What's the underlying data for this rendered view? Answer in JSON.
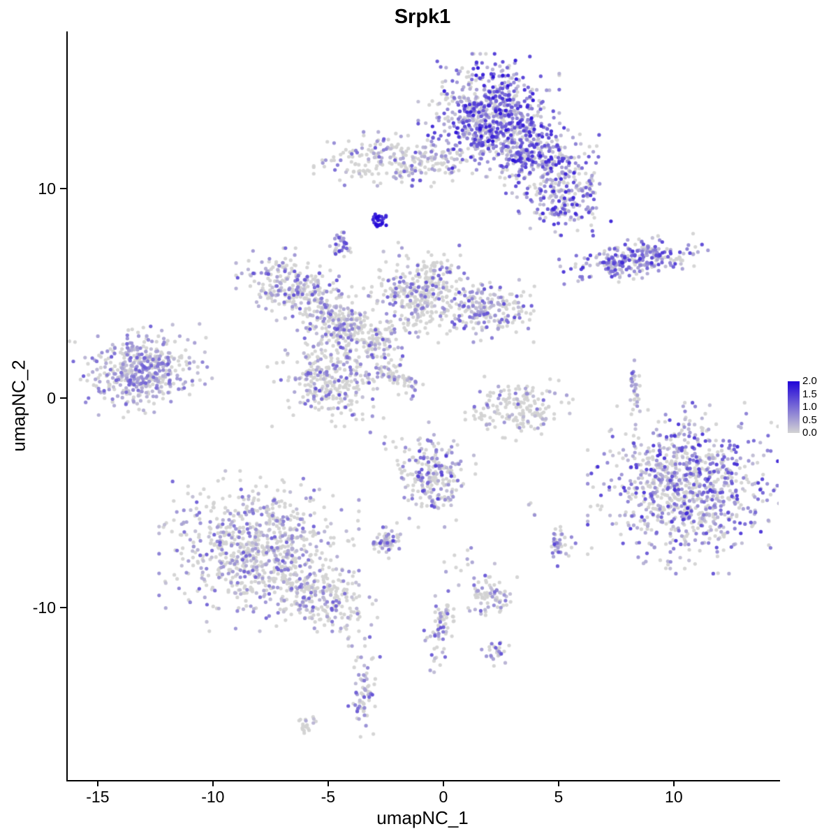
{
  "figure": {
    "background": "#FFFFFF"
  },
  "chart_data": {
    "type": "scatter",
    "title": "Srpk1",
    "subtitle": "",
    "xlabel": "umapNC_1",
    "ylabel": "umapNC_2",
    "grid": false,
    "legend_position": "right",
    "xlim": [
      -16.36,
      14.55
    ],
    "ylim": [
      -18.23,
      17.5
    ],
    "x_tick_values": [
      -15,
      -10,
      -5,
      0,
      5,
      10
    ],
    "x_tick_labels": [
      "-15",
      "-10",
      "-5",
      "0",
      "5",
      "10"
    ],
    "y_tick_values": [
      10,
      0,
      -10
    ],
    "y_tick_labels": [
      "10",
      "0",
      "-10"
    ],
    "legend": {
      "labels": [
        "2.0",
        "1.5",
        "1.0",
        "0.5",
        "0.0"
      ],
      "values": [
        2.0,
        1.5,
        1.0,
        0.5,
        0.0
      ],
      "color_high": "#2004D8",
      "color_low": "#D3D3D3"
    },
    "expression_range": [
      0,
      2
    ],
    "point_radius_px": 2.6,
    "point_alpha": 0.95,
    "colors": {
      "zero_expression": "#D3D3D3",
      "max_expression": "#2004D8"
    },
    "clusters": [
      {
        "name": "top-main-core",
        "x": 1.97,
        "y": 13.5,
        "sx": 1.2,
        "sy": 1.15,
        "n": 700,
        "pos": 0.78,
        "inten": 0.95
      },
      {
        "name": "top-main-ext",
        "x": 4.0,
        "y": 11.5,
        "sx": 1.2,
        "sy": 0.85,
        "n": 320,
        "pos": 0.7,
        "inten": 0.85,
        "rot": -25
      },
      {
        "name": "top-main-arm",
        "x": 5.3,
        "y": 9.6,
        "sx": 0.8,
        "sy": 0.75,
        "n": 180,
        "pos": 0.68,
        "inten": 0.85
      },
      {
        "name": "top-left-band",
        "x": -1.8,
        "y": 11.3,
        "sx": 1.5,
        "sy": 0.55,
        "n": 230,
        "pos": 0.35,
        "inten": 0.6
      },
      {
        "name": "left-of-band-sparse",
        "x": -3.9,
        "y": 11.5,
        "sx": 0.4,
        "sy": 0.4,
        "n": 12,
        "pos": 0.3,
        "inten": 0.5
      },
      {
        "name": "dark-dot-blob",
        "x": -2.8,
        "y": 8.5,
        "sx": 0.17,
        "sy": 0.22,
        "n": 26,
        "pos": 1.0,
        "inten": 1.0,
        "dark": true
      },
      {
        "name": "small-purple-blob",
        "x": -4.5,
        "y": 7.3,
        "sx": 0.2,
        "sy": 0.32,
        "n": 34,
        "pos": 0.8,
        "inten": 0.7
      },
      {
        "name": "right-elongated",
        "x": 8.2,
        "y": 6.6,
        "sx": 1.3,
        "sy": 0.38,
        "n": 260,
        "pos": 0.75,
        "inten": 0.8,
        "rot": 8
      },
      {
        "name": "left-net-a",
        "x": -6.7,
        "y": 5.5,
        "sx": 0.9,
        "sy": 0.65,
        "n": 200,
        "pos": 0.45,
        "inten": 0.6
      },
      {
        "name": "left-net-b",
        "x": -5.2,
        "y": 4.2,
        "sx": 0.7,
        "sy": 0.6,
        "n": 150,
        "pos": 0.45,
        "inten": 0.6,
        "rot": -20
      },
      {
        "name": "left-net-c",
        "x": -4.2,
        "y": 3.3,
        "sx": 0.5,
        "sy": 0.4,
        "n": 90,
        "pos": 0.4,
        "inten": 0.6
      },
      {
        "name": "center-top-blob",
        "x": -0.9,
        "y": 5.0,
        "sx": 1.05,
        "sy": 0.95,
        "n": 360,
        "pos": 0.32,
        "inten": 0.6
      },
      {
        "name": "center-top-stem",
        "x": -2.7,
        "y": 2.7,
        "sx": 0.55,
        "sy": 0.5,
        "n": 90,
        "pos": 0.35,
        "inten": 0.6,
        "rot": 30
      },
      {
        "name": "right-of-center-blob",
        "x": 2.0,
        "y": 4.2,
        "sx": 0.8,
        "sy": 0.6,
        "n": 180,
        "pos": 0.55,
        "inten": 0.7
      },
      {
        "name": "far-left",
        "x": -13.0,
        "y": 1.3,
        "sx": 1.15,
        "sy": 0.8,
        "n": 460,
        "pos": 0.6,
        "inten": 0.55,
        "rot": 10
      },
      {
        "name": "center-left-blob",
        "x": -4.7,
        "y": 1.2,
        "sx": 1.15,
        "sy": 1.0,
        "n": 330,
        "pos": 0.35,
        "inten": 0.6
      },
      {
        "name": "center-streak",
        "x": -2.0,
        "y": 1.0,
        "sx": 0.65,
        "sy": 0.25,
        "n": 60,
        "pos": 0.3,
        "inten": 0.5,
        "rot": -28
      },
      {
        "name": "right-center-grey",
        "x": 3.2,
        "y": -0.5,
        "sx": 0.95,
        "sy": 0.6,
        "n": 170,
        "pos": 0.25,
        "inten": 0.5
      },
      {
        "name": "tiny-vertical-strip",
        "x": 8.3,
        "y": 0.2,
        "sx": 0.12,
        "sy": 0.7,
        "n": 30,
        "pos": 0.5,
        "inten": 0.6
      },
      {
        "name": "big-right",
        "x": 10.6,
        "y": -4.3,
        "sx": 1.7,
        "sy": 1.6,
        "n": 900,
        "pos": 0.62,
        "inten": 0.8
      },
      {
        "name": "center-bottom",
        "x": -0.5,
        "y": -3.7,
        "sx": 0.75,
        "sy": 1.0,
        "n": 230,
        "pos": 0.5,
        "inten": 0.7
      },
      {
        "name": "bottom-left-big",
        "x": -8.0,
        "y": -7.3,
        "sx": 1.7,
        "sy": 1.5,
        "n": 800,
        "pos": 0.4,
        "inten": 0.55
      },
      {
        "name": "bottom-left-arm",
        "x": -5.4,
        "y": -9.5,
        "sx": 1.1,
        "sy": 0.6,
        "n": 210,
        "pos": 0.35,
        "inten": 0.55,
        "rot": -25
      },
      {
        "name": "small-mid-blob",
        "x": -2.5,
        "y": -6.8,
        "sx": 0.38,
        "sy": 0.33,
        "n": 60,
        "pos": 0.5,
        "inten": 0.7
      },
      {
        "name": "small-right-blob",
        "x": 5.1,
        "y": -7.0,
        "sx": 0.25,
        "sy": 0.4,
        "n": 35,
        "pos": 0.6,
        "inten": 0.7
      },
      {
        "name": "small-bottom-blob",
        "x": 2.1,
        "y": -9.3,
        "sx": 0.45,
        "sy": 0.55,
        "n": 75,
        "pos": 0.45,
        "inten": 0.6
      },
      {
        "name": "bottom-stream",
        "x": -0.15,
        "y": -10.7,
        "sx": 0.3,
        "sy": 0.95,
        "n": 70,
        "pos": 0.45,
        "inten": 0.6,
        "rot": -10
      },
      {
        "name": "tiny-bottom-blob",
        "x": 2.3,
        "y": -12.1,
        "sx": 0.25,
        "sy": 0.28,
        "n": 25,
        "pos": 0.4,
        "inten": 0.6
      },
      {
        "name": "bottom-small-strip",
        "x": -3.5,
        "y": -14.0,
        "sx": 0.3,
        "sy": 0.85,
        "n": 70,
        "pos": 0.5,
        "inten": 0.6
      },
      {
        "name": "tiny-far-bottom",
        "x": -6.0,
        "y": -15.6,
        "sx": 0.25,
        "sy": 0.18,
        "n": 20,
        "pos": 0.2,
        "inten": 0.4
      },
      {
        "name": "sparse-a",
        "x": 8.3,
        "y": -2.0,
        "sx": 0.12,
        "sy": 0.2,
        "n": 4,
        "pos": 0.4,
        "inten": 0.5
      },
      {
        "name": "sparse-b",
        "x": 3.9,
        "y": -5.3,
        "sx": 0.2,
        "sy": 0.2,
        "n": 4,
        "pos": 0.3,
        "inten": 0.5
      },
      {
        "name": "sparse-c",
        "x": 1.0,
        "y": -7.7,
        "sx": 0.5,
        "sy": 0.35,
        "n": 9,
        "pos": 0.4,
        "inten": 0.5
      },
      {
        "name": "sparse-d",
        "x": -2.6,
        "y": -2.2,
        "sx": 0.3,
        "sy": 0.3,
        "n": 6,
        "pos": 0.3,
        "inten": 0.5
      }
    ]
  }
}
